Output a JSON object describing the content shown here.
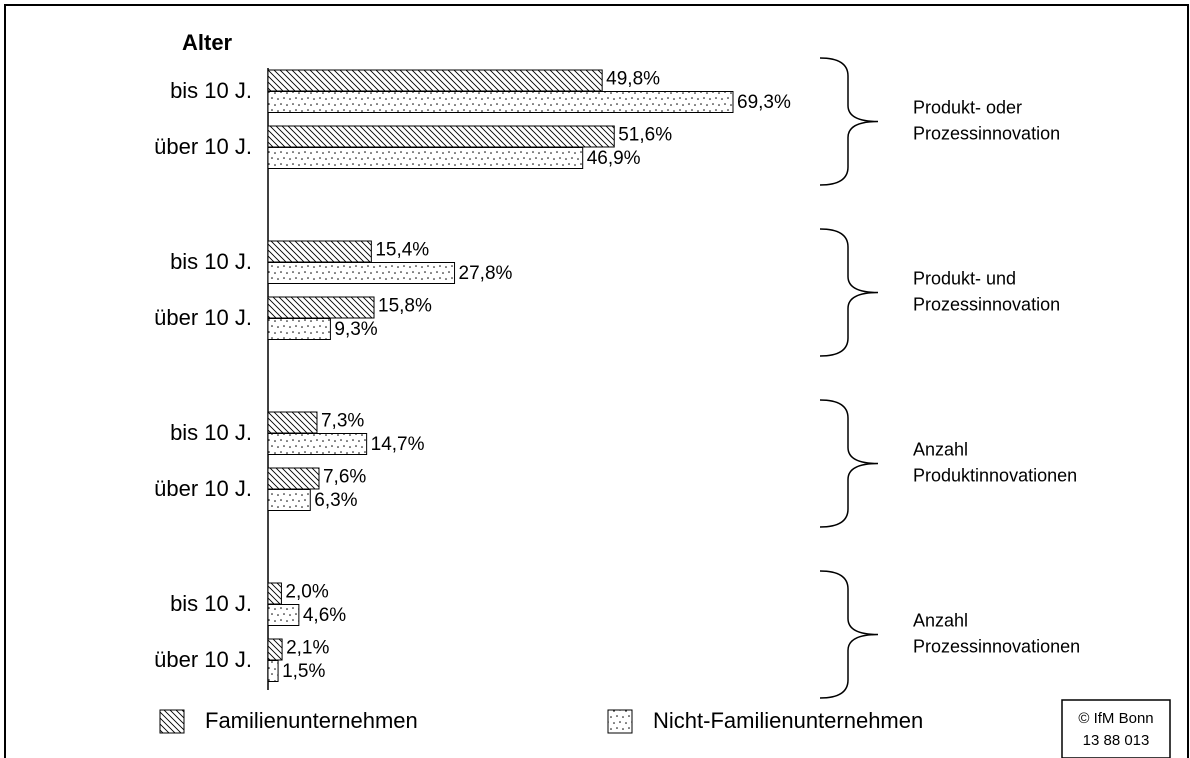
{
  "chart_data": {
    "type": "bar",
    "axis_title": "Alter",
    "categories": [
      "bis 10 J.",
      "über 10 J.",
      "bis 10 J.",
      "über 10 J.",
      "bis 10 J.",
      "über 10 J.",
      "bis 10 J.",
      "über 10 J."
    ],
    "groups": [
      {
        "lines": [
          "Produkt- oder",
          "Prozessinnovation"
        ]
      },
      {
        "lines": [
          "Produkt- und",
          "Prozessinnovation"
        ]
      },
      {
        "lines": [
          "Anzahl",
          "Produktinnovationen"
        ]
      },
      {
        "lines": [
          "Anzahl",
          "Prozessinnovationen"
        ]
      }
    ],
    "series": [
      {
        "name": "Familienunternehmen",
        "values": [
          49.8,
          51.6,
          15.4,
          15.8,
          7.3,
          7.6,
          2.0,
          2.1
        ],
        "value_labels": [
          "49,8%",
          "51,6%",
          "15,4%",
          "15,8%",
          "7,3%",
          "7,6%",
          "2,0%",
          "2,1%"
        ]
      },
      {
        "name": "Nicht-Familienunternehmen",
        "values": [
          69.3,
          46.9,
          27.8,
          9.3,
          14.7,
          6.3,
          4.6,
          1.5
        ],
        "value_labels": [
          "69,3%",
          "46,9%",
          "27,8%",
          "9,3%",
          "14,7%",
          "6,3%",
          "4,6%",
          "1,5%"
        ]
      }
    ],
    "xlim": [
      0,
      100
    ],
    "source": [
      "© IfM Bonn",
      "13  88  013"
    ]
  }
}
